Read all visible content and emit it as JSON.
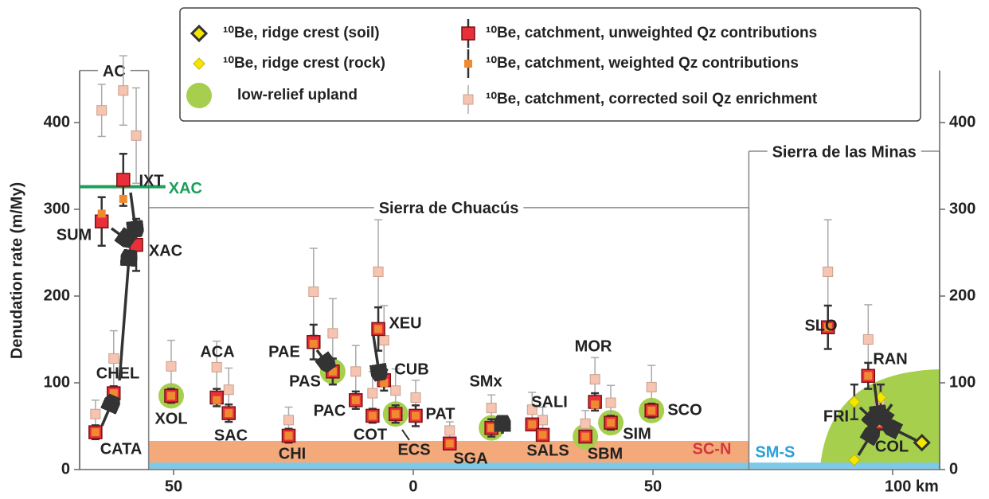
{
  "chart_data": {
    "type": "scatter",
    "ylabel": "Denudation rate (m/My)",
    "xlim": [
      -69.6,
      109.8
    ],
    "xticks": [
      {
        "value": -50,
        "label": "50"
      },
      0,
      50,
      {
        "value": 100,
        "label": "100 km"
      }
    ],
    "ylim": [
      0,
      460
    ],
    "yticks": [
      0,
      100,
      200,
      300,
      400
    ],
    "y2lim": [
      0,
      460
    ],
    "y2ticks": [
      0,
      100,
      200,
      300,
      400
    ],
    "series": [
      {
        "name": "¹⁰Be, ridge crest (soil)",
        "color": "#f5e600",
        "marker": "diamond-edged",
        "x": [
          106.1
        ],
        "values": [
          31
        ]
      },
      {
        "name": "¹⁰Be, ridge crest (rock)",
        "color": "#f5e600",
        "marker": "diamond",
        "x": [
          92,
          92,
          97.5
        ],
        "values": [
          78,
          11,
          83
        ],
        "errors": [
          20,
          null,
          15
        ]
      },
      {
        "name": "low-relief upland",
        "color": "#a5cf4c",
        "marker": "circle",
        "x": [
          -50.5,
          -16.8,
          -3.7,
          16.3,
          35.9,
          41.2,
          49.7
        ],
        "values": [
          85,
          113,
          64,
          48,
          38,
          54,
          68
        ]
      },
      {
        "name": "¹⁰Be, catchment, unweighted Qz contributions",
        "color": "#e8303a",
        "marker": "square-large",
        "labels": [
          "CATA",
          "CHEL",
          "SUM",
          "IXT",
          "XAC",
          "XOL",
          "ACA",
          "SAC",
          "CHI",
          "PAE",
          "PAS",
          "PAC",
          "COT",
          "XEU",
          "CUB",
          "ECS",
          "PAT",
          "SGA",
          "SMx",
          "SALI",
          "SALS",
          "SBM",
          "MOR",
          "SIM",
          "SCO",
          "SLO",
          "RAN",
          "COL"
        ],
        "x": [
          -66.3,
          -62.5,
          -65,
          -60.5,
          -57.8,
          -50.5,
          -41,
          -38.5,
          -26,
          -20.8,
          -16.8,
          -12,
          -8.5,
          -7.3,
          -6.1,
          -3.7,
          0.5,
          7.6,
          16.3,
          24.8,
          27,
          35.9,
          37.9,
          41.2,
          49.7,
          86.5,
          94.9,
          97.3
        ],
        "values": [
          43,
          88,
          286,
          334,
          259,
          85,
          83,
          65,
          39,
          147,
          113,
          80,
          62,
          162,
          103,
          64,
          62,
          30,
          48,
          52,
          40,
          38,
          78,
          54,
          68,
          164,
          108,
          54
        ],
        "errors": [
          8,
          8,
          28,
          30,
          30,
          8,
          10,
          10,
          8,
          20,
          15,
          10,
          8,
          25,
          12,
          10,
          12,
          5,
          10,
          6,
          6,
          6,
          10,
          8,
          8,
          25,
          15,
          8
        ]
      },
      {
        "name": "¹⁰Be, catchment, weighted Qz contributions",
        "color": "#f08a30",
        "marker": "square-small",
        "x": [
          -66.3,
          -62.5,
          -65,
          -60.5,
          -57.8,
          -50.5,
          -41,
          -38.5,
          -26,
          -20.8,
          -16.8,
          -12,
          -8.5,
          -7.3,
          -6.1,
          -3.7,
          0.5,
          7.6,
          16.3,
          24.8,
          27,
          35.9,
          37.9,
          41.2,
          49.7,
          86.5,
          94.9,
          97.3
        ],
        "values": [
          43,
          88,
          295,
          312,
          275,
          85,
          80,
          65,
          39,
          145,
          113,
          80,
          62,
          162,
          100,
          64,
          62,
          30,
          48,
          52,
          40,
          38,
          75,
          54,
          68,
          164,
          108,
          54
        ]
      },
      {
        "name": "¹⁰Be, catchment, corrected soil Qz enrichment",
        "color": "#f6c4b0",
        "marker": "square-light",
        "x": [
          -66.3,
          -62.5,
          -65,
          -60.5,
          -57.8,
          -50.5,
          -41,
          -38.5,
          -26,
          -20.8,
          -16.8,
          -12,
          -8.5,
          -7.3,
          -6.1,
          -3.7,
          0.5,
          7.6,
          16.3,
          24.8,
          27,
          35.9,
          37.9,
          41.2,
          49.7,
          86.5,
          94.9,
          97.3
        ],
        "values": [
          64,
          128,
          414,
          437,
          385,
          119,
          118,
          92,
          57,
          205,
          157,
          113,
          88,
          228,
          149,
          91,
          83,
          45,
          71,
          69,
          57,
          53,
          104,
          77,
          95,
          228,
          150,
          75
        ],
        "errors": [
          16,
          32,
          30,
          40,
          55,
          30,
          30,
          25,
          15,
          50,
          40,
          30,
          25,
          60,
          40,
          25,
          20,
          10,
          15,
          20,
          15,
          15,
          25,
          20,
          25,
          60,
          40,
          20
        ]
      }
    ],
    "regions": [
      {
        "label": "AC",
        "xlim": [
          -69.6,
          -55.2
        ],
        "top": 460
      },
      {
        "label": "Sierra de Chuacús",
        "xlim": [
          -55.2,
          70
        ],
        "top": 302
      },
      {
        "label": "Sierra de las Minas",
        "xlim": [
          70,
          109.8
        ],
        "top": 367
      }
    ],
    "bands": [
      {
        "label": "SC-N",
        "xlim": [
          -55.2,
          70
        ],
        "ylim": [
          7,
          33
        ],
        "color": "#f4a97a",
        "label_color": "#d2393a"
      },
      {
        "label": "SM-S",
        "xlim": [
          -55.2,
          109.8
        ],
        "ylim": [
          1,
          8
        ],
        "color": "#7ec8e8",
        "label_color": "#2aa0d8"
      }
    ],
    "reference_lines": [
      {
        "label": "XAC",
        "value": 326,
        "xlim": [
          -69.6,
          -51.7
        ],
        "color": "#1a9e5a"
      }
    ],
    "annotations": [
      "FRI"
    ]
  }
}
